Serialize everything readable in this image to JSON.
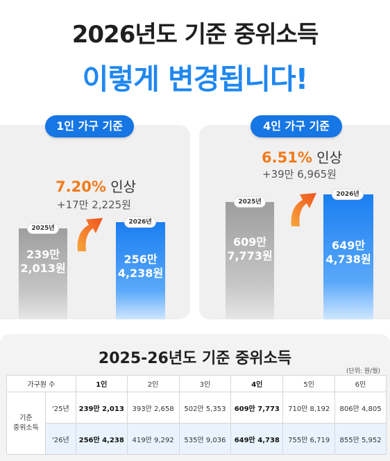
{
  "header": {
    "title": "2026년도 기준 중위소득",
    "subtitle": "이렇게 변경됩니다!"
  },
  "chart_data": [
    {
      "type": "bar",
      "title": "1인 가구 기준",
      "categories": [
        "2025년",
        "2026년"
      ],
      "values": [
        2392013,
        2564238
      ],
      "value_labels": [
        [
          "239만",
          "2,013원"
        ],
        [
          "256만",
          "4,238원"
        ]
      ],
      "rate_value": "7.20%",
      "rate_word": "인상",
      "diff_text": "+17만 2,225원",
      "colors": [
        "#b0b0b0",
        "#2a86f2"
      ]
    },
    {
      "type": "bar",
      "title": "4인 가구 기준",
      "categories": [
        "2025년",
        "2026년"
      ],
      "values": [
        6097773,
        6494738
      ],
      "value_labels": [
        [
          "609만",
          "7,773원"
        ],
        [
          "649만",
          "4,738원"
        ]
      ],
      "rate_value": "6.51%",
      "rate_word": "인상",
      "diff_text": "+39만 6,965원",
      "colors": [
        "#b0b0b0",
        "#2a86f2"
      ]
    }
  ],
  "table": {
    "title": "2025-26년도 기준 중위소득",
    "unit": "(단위: 원/월)",
    "headers": [
      "가구원 수",
      "1인",
      "2인",
      "3인",
      "4인",
      "5인",
      "6인"
    ],
    "row_group": "기준\n중위소득",
    "rows": [
      {
        "year": "'25년",
        "cells": [
          "239만 2,013",
          "393만 2,658",
          "502만 5,353",
          "609만 7,773",
          "710만 8,192",
          "806만 4,805"
        ]
      },
      {
        "year": "'26년",
        "cells": [
          "256만 4,238",
          "419만 9,292",
          "535만 9,036",
          "649만 4,738",
          "755만 6,719",
          "855만 5,952"
        ]
      }
    ]
  }
}
